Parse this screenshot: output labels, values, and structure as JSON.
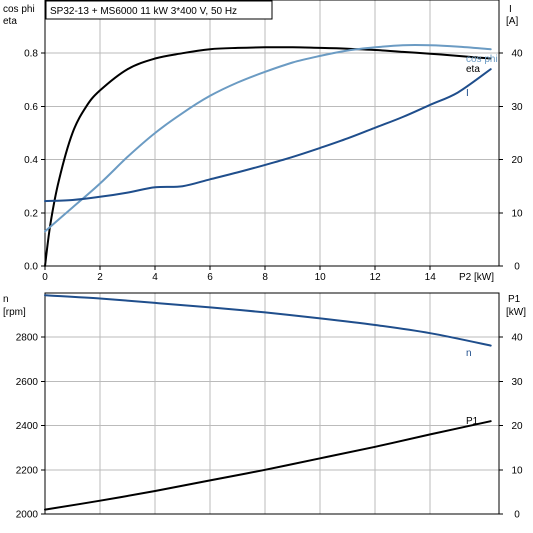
{
  "chart_data": [
    {
      "type": "line",
      "title": "SP32-13 + MS6000   11 kW   3*400 V, 50 Hz",
      "xlabel": "P2 [kW]",
      "xlim": [
        0,
        16.5
      ],
      "xticks": [
        0,
        2,
        4,
        6,
        8,
        10,
        12,
        14
      ],
      "left_axis": {
        "label_lines": [
          "cos phi",
          "eta"
        ],
        "ylim": [
          0,
          1.0
        ],
        "ticks": [
          0.0,
          0.2,
          0.4,
          0.6,
          0.8
        ],
        "tick_labels": [
          "0.0",
          "0.2",
          "0.4",
          "0.6",
          "0.8"
        ]
      },
      "right_axis": {
        "label_lines": [
          "I",
          "[A]"
        ],
        "ylim": [
          0,
          50
        ],
        "ticks": [
          0,
          10,
          20,
          30,
          40
        ],
        "tick_labels": [
          "0",
          "10",
          "20",
          "30",
          "40"
        ]
      },
      "grid": true,
      "series": [
        {
          "name": "eta",
          "axis": "left",
          "color": "#000000",
          "x": [
            0,
            0.2,
            0.5,
            1,
            1.5,
            2,
            3,
            4,
            5,
            6,
            7,
            8,
            9,
            10,
            11,
            12,
            13,
            14,
            15,
            16.2
          ],
          "y": [
            0,
            0.16,
            0.32,
            0.5,
            0.6,
            0.66,
            0.74,
            0.78,
            0.8,
            0.815,
            0.82,
            0.822,
            0.822,
            0.82,
            0.817,
            0.812,
            0.805,
            0.798,
            0.79,
            0.78
          ]
        },
        {
          "name": "cos phi",
          "axis": "left",
          "color": "#6b9bc3",
          "x": [
            0,
            1,
            2,
            3,
            4,
            5,
            6,
            7,
            8,
            9,
            10,
            11,
            12,
            13,
            14,
            15,
            16.2
          ],
          "y": [
            0.13,
            0.22,
            0.31,
            0.41,
            0.5,
            0.575,
            0.64,
            0.69,
            0.73,
            0.765,
            0.79,
            0.81,
            0.822,
            0.83,
            0.83,
            0.825,
            0.815
          ]
        },
        {
          "name": "I",
          "axis": "right",
          "color": "#1f4e8c",
          "x": [
            0,
            1,
            2,
            3,
            4,
            5,
            6,
            7,
            8,
            9,
            10,
            11,
            12,
            13,
            14,
            15,
            16.2
          ],
          "y": [
            12.2,
            12.4,
            13.0,
            13.8,
            14.8,
            15.0,
            16.3,
            17.6,
            19.0,
            20.5,
            22.2,
            24.0,
            26.0,
            28.0,
            30.3,
            32.6,
            37.0
          ]
        }
      ]
    },
    {
      "type": "line",
      "xlim": [
        0,
        16.5
      ],
      "left_axis": {
        "label_lines": [
          "n",
          "[rpm]"
        ],
        "ylim": [
          2000,
          3000
        ],
        "ticks": [
          2000,
          2200,
          2400,
          2600,
          2800
        ],
        "tick_labels": [
          "2000",
          "2200",
          "2400",
          "2600",
          "2800"
        ]
      },
      "right_axis": {
        "label_lines": [
          "P1",
          "[kW]"
        ],
        "ylim": [
          0,
          50
        ],
        "ticks": [
          0,
          10,
          20,
          30,
          40
        ],
        "tick_labels": [
          "0",
          "10",
          "20",
          "30",
          "40"
        ]
      },
      "grid": true,
      "series": [
        {
          "name": "n",
          "axis": "left",
          "color": "#1f4e8c",
          "x": [
            0,
            2,
            4,
            6,
            8,
            10,
            12,
            14,
            16.2
          ],
          "y": [
            2990,
            2975,
            2955,
            2935,
            2912,
            2885,
            2855,
            2818,
            2762
          ]
        },
        {
          "name": "P1",
          "axis": "right",
          "color": "#000000",
          "x": [
            0,
            2,
            4,
            6,
            8,
            10,
            12,
            14,
            16.2
          ],
          "y": [
            1.0,
            3.0,
            5.2,
            7.6,
            10.0,
            12.6,
            15.2,
            18.0,
            21.0
          ]
        }
      ]
    }
  ]
}
